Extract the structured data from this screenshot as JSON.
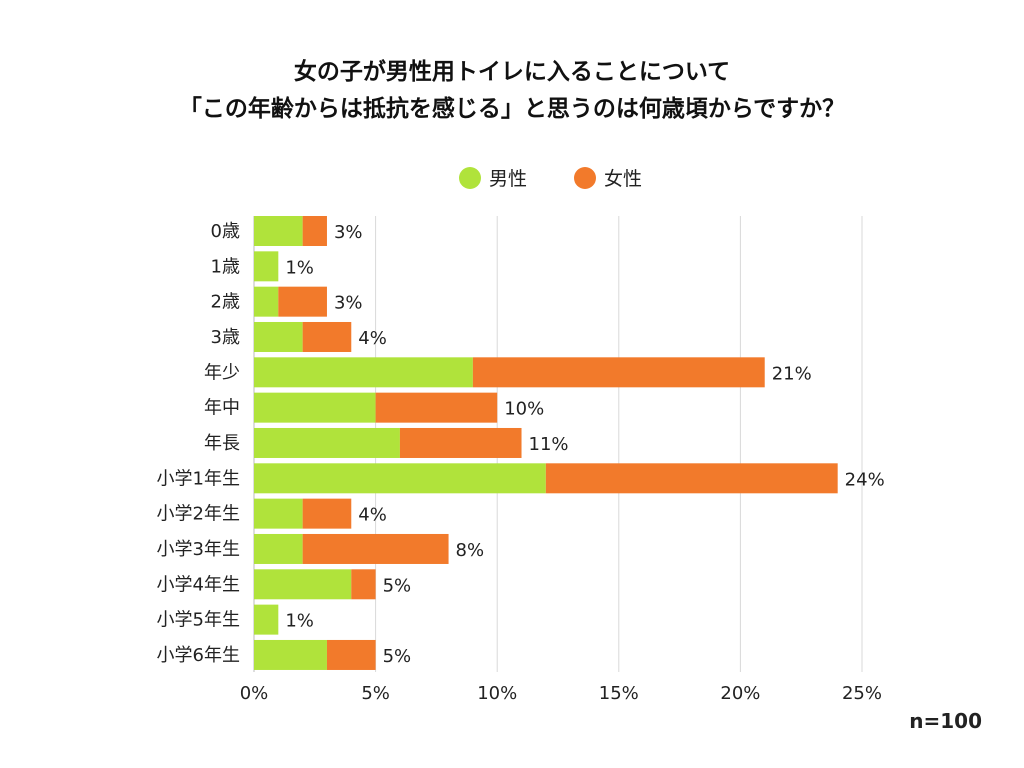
{
  "chart_data": {
    "type": "bar",
    "stacked": true,
    "orientation": "horizontal",
    "title_lines": [
      "女の子が男性用トイレに入ることについて",
      "「この年齢からは抵抗を感じる」と思うのは何歳頃からですか？"
    ],
    "categories": [
      "0歳",
      "1歳",
      "2歳",
      "3歳",
      "年少",
      "年中",
      "年長",
      "小学1年生",
      "小学2年生",
      "小学3年生",
      "小学4年生",
      "小学5年生",
      "小学6年生"
    ],
    "series": [
      {
        "name": "男性",
        "color": "#b0e33b",
        "values": [
          2,
          1,
          1,
          2,
          9,
          5,
          6,
          12,
          2,
          2,
          4,
          1,
          3
        ]
      },
      {
        "name": "女性",
        "color": "#f27a2b",
        "values": [
          1,
          0,
          2,
          2,
          12,
          5,
          5,
          12,
          2,
          6,
          1,
          0,
          2
        ]
      }
    ],
    "totals_labels": [
      "3%",
      "1%",
      "3%",
      "4%",
      "21%",
      "10%",
      "11%",
      "24%",
      "4%",
      "8%",
      "5%",
      "1%",
      "5%"
    ],
    "totals": [
      3,
      1,
      3,
      4,
      21,
      10,
      11,
      24,
      4,
      8,
      5,
      1,
      5
    ],
    "xlim": [
      0,
      25
    ],
    "xticks": [
      0,
      5,
      10,
      15,
      20,
      25
    ],
    "xtick_labels": [
      "0%",
      "5%",
      "10%",
      "15%",
      "20%",
      "25%"
    ],
    "grid": true,
    "legend_position": "top-center",
    "annotation": "n=100",
    "xlabel": "",
    "ylabel": ""
  }
}
